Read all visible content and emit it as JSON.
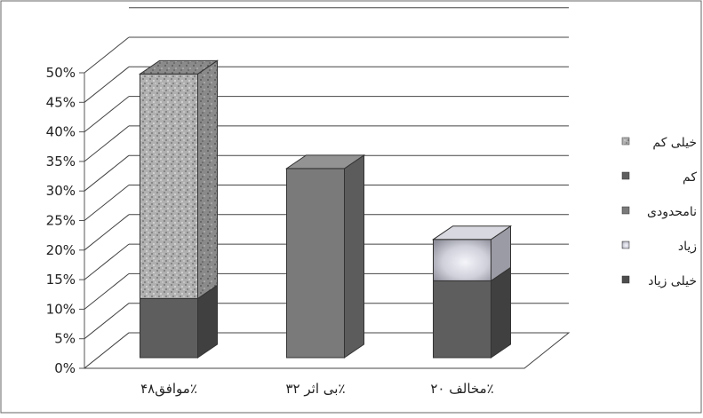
{
  "chart_data": {
    "type": "bar",
    "stacked": true,
    "three_d": true,
    "categories": [
      "موافق۴۸٪",
      "بی اثر ۳۲٪",
      "مخالف ۲۰٪"
    ],
    "series": [
      {
        "name": "خیلی زیاد",
        "values": [
          0,
          0,
          0
        ],
        "color": "#4d4d4d"
      },
      {
        "name": "زیاد",
        "values": [
          0,
          0,
          7
        ],
        "color": "#c0c0c8"
      },
      {
        "name": "نامحدودی",
        "values": [
          0,
          32,
          0
        ],
        "color": "#7a7a7a"
      },
      {
        "name": "کم",
        "values": [
          10,
          0,
          13
        ],
        "color": "#5e5e5e"
      },
      {
        "name": "خیلی کم",
        "values": [
          38,
          0,
          0
        ],
        "color": "#a6a6a6"
      }
    ],
    "y_ticks": [
      "0%",
      "5%",
      "10%",
      "15%",
      "20%",
      "25%",
      "30%",
      "35%",
      "40%",
      "45%",
      "50%"
    ],
    "ylim": [
      0,
      55
    ],
    "grid": true,
    "legend_position": "right",
    "legend_order": [
      "خیلی کم",
      "کم",
      "نامحدودی",
      "زیاد",
      "خیلی زیاد"
    ]
  }
}
